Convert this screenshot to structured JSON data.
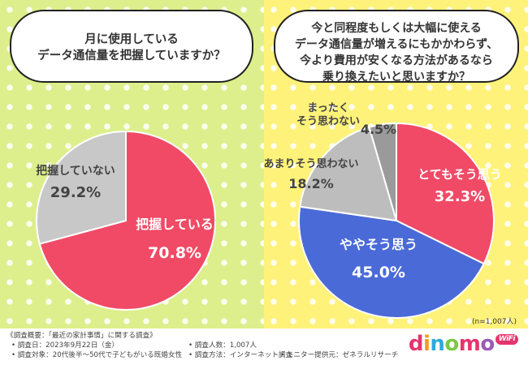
{
  "left_question": "月に使用している\nデータ通信量を把握していますか？",
  "right_question": "今と同程度もしくは大幅に使える\nデータ通信量が増えるにもかかわらず、\n今より費用が安くなる方法があるなら\n乗り換えたいと思いますか？",
  "sample_note": "(n=1,007人)",
  "footer": {
    "heading": "《調査概要：「最近の家計事情」に関する調査》",
    "date": "• 調査日：2023年9月22日（金）",
    "target": "• 調査対象：20代後半〜50代で子どもがいる既婚女性",
    "count": "• 調査人数：1,007人",
    "method": "• 調査方法：インターネット調査",
    "provider": "• モニター提供元：ゼネラルリサーチ"
  },
  "logo": {
    "text": "dinomo",
    "badge": "WiFi"
  },
  "colors": {
    "left_bg": "#dcef8c",
    "right_bg": "#fff27a",
    "red": "#f04a66",
    "gray": "#c8c8c8",
    "blue": "#4a6ad8",
    "light_gray": "#bdbdbd",
    "dark_gray": "#9a9a9a"
  },
  "chart_data": [
    {
      "type": "pie",
      "slices": [
        {
          "label": "把握している",
          "value": 70.8,
          "value_label": "70.8%",
          "color": "#f04a66"
        },
        {
          "label": "把握していない",
          "value": 29.2,
          "value_label": "29.2%",
          "color": "#c8c8c8"
        }
      ]
    },
    {
      "type": "pie",
      "slices": [
        {
          "label": "とてもそう思う",
          "value": 32.3,
          "value_label": "32.3%",
          "color": "#f04a66"
        },
        {
          "label": "ややそう思う",
          "value": 45.0,
          "value_label": "45.0%",
          "color": "#4a6ad8"
        },
        {
          "label": "あまりそう思わない",
          "value": 18.2,
          "value_label": "18.2%",
          "color": "#bdbdbd"
        },
        {
          "label": "まったく\nそう思わない",
          "value": 4.5,
          "value_label": "4.5%",
          "color": "#9a9a9a"
        }
      ]
    }
  ]
}
